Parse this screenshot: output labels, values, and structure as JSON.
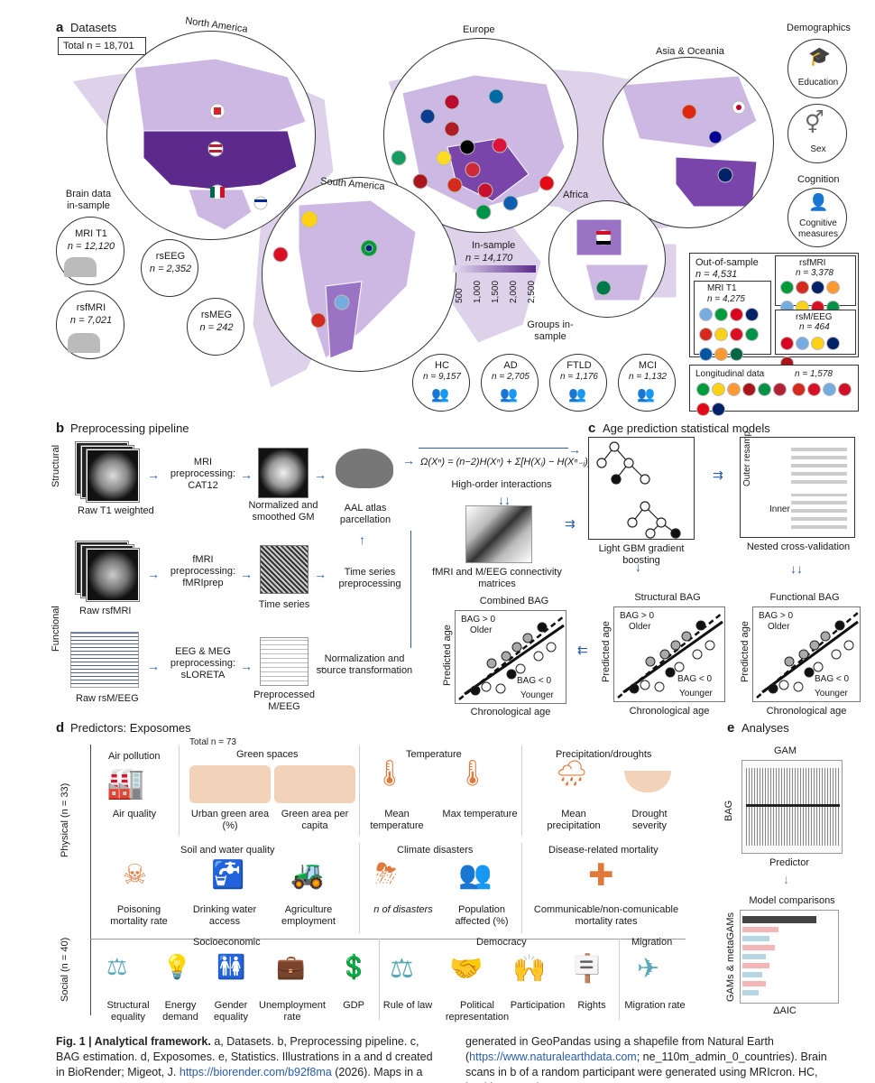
{
  "panel_a": {
    "letter": "a",
    "title": "Datasets",
    "total": "Total n = 18,701",
    "regions": [
      "North America",
      "Europe",
      "Asia & Oceania",
      "South America",
      "Africa"
    ],
    "demographics_title": "Demographics",
    "demographics": [
      "Education",
      "Sex"
    ],
    "cognition_title": "Cognition",
    "cognition": "Cognitive measures",
    "brain_data_title": "Brain data in-sample",
    "brain_data": [
      {
        "name": "MRI T1",
        "n": "n = 12,120"
      },
      {
        "name": "rsEEG",
        "n": "n = 2,352"
      },
      {
        "name": "rsfMRI",
        "n": "n = 7,021"
      },
      {
        "name": "rsMEG",
        "n": "n = 242"
      }
    ],
    "in_sample_label": "In-sample",
    "in_sample_n": "n = 14,170",
    "scale_ticks": [
      "500",
      "1,000",
      "1,500",
      "2,000",
      "2,500"
    ],
    "groups_title": "Groups in-sample",
    "groups": [
      {
        "name": "HC",
        "n": "n = 9,157"
      },
      {
        "name": "AD",
        "n": "n = 2,705"
      },
      {
        "name": "FTLD",
        "n": "n = 1,176"
      },
      {
        "name": "MCI",
        "n": "n = 1,132"
      }
    ],
    "oos_title": "Out-of-sample",
    "oos_n": "n = 4,531",
    "oos_mri": "MRI T1",
    "oos_mri_n": "n = 4,275",
    "oos_rsfmri": "rsfMRI",
    "oos_rsfmri_n": "n = 3,378",
    "oos_rsmeeg": "rsM/EEG",
    "oos_rsmeeg_n": "n = 464",
    "longitudinal": "Longitudinal data",
    "longitudinal_n": "n = 1,578"
  },
  "panel_b": {
    "letter": "b",
    "title": "Preprocessing pipeline",
    "structural_label": "Structural",
    "functional_label": "Functional",
    "raw_t1": "Raw T1 weighted",
    "mri_prep": "MRI preprocessing: CAT12",
    "normalized": "Normalized and smoothed GM",
    "aal": "AAL atlas parcellation",
    "raw_rsfmri": "Raw rsfMRI",
    "fmri_prep": "fMRI preprocessing: fMRIprep",
    "time_series": "Time series",
    "ts_prep": "Time series preprocessing",
    "raw_rsmeeg": "Raw rsM/EEG",
    "eeg_prep": "EEG & MEG preprocessing: sLORETA",
    "prep_meeg": "Preprocessed M/EEG",
    "norm_source": "Normalization and source transformation",
    "formula": "Ω(Xⁿ) = (n−2)H(Xⁿ) + Σ[H(Xⱼ) − H(Xⁿ₋ⱼ)]",
    "hoi": "High-order interactions",
    "conn": "fMRI and M/EEG connectivity matrices"
  },
  "panel_c": {
    "letter": "c",
    "title": "Age prediction statistical models",
    "lgbm": "Light GBM gradient boosting",
    "nested": "Nested cross-validation",
    "outer": "Outer resamp",
    "inner": "Inner resamp",
    "plots": [
      {
        "title": "Combined BAG"
      },
      {
        "title": "Structural BAG"
      },
      {
        "title": "Functional BAG"
      }
    ],
    "ylabel": "Predicted age",
    "xlabel": "Chronological age",
    "bag_pos": "BAG > 0",
    "older": "Older",
    "bag_neg": "BAG < 0",
    "younger": "Younger"
  },
  "panel_d": {
    "letter": "d",
    "title": "Predictors: Exposomes",
    "total": "Total n = 73",
    "physical_label": "Physical (n = 33)",
    "social_label": "Social (n = 40)",
    "groups": [
      {
        "title": "Air pollution",
        "items": [
          "Air quality"
        ]
      },
      {
        "title": "Green spaces",
        "items": [
          "Urban green area (%)",
          "Green area per capita"
        ]
      },
      {
        "title": "Temperature",
        "items": [
          "Mean temperature",
          "Max temperature"
        ]
      },
      {
        "title": "Precipitation/droughts",
        "items": [
          "Mean precipitation",
          "Drought severity"
        ]
      },
      {
        "title": "Soil and water quality",
        "items": [
          "Poisoning mortality rate",
          "Drinking water access",
          "Agriculture employment"
        ]
      },
      {
        "title": "Climate disasters",
        "items": [
          "n of disasters",
          "Population affected (%)"
        ]
      },
      {
        "title": "Disease-related mortality",
        "items": [
          "Communicable/non-comunicable mortality rates"
        ]
      },
      {
        "title": "Socioeconomic",
        "items": [
          "Structural equality",
          "Energy demand",
          "Gender equality",
          "Unemployment rate",
          "GDP"
        ]
      },
      {
        "title": "Democracy",
        "items": [
          "Rule of law",
          "Political representation",
          "Participation",
          "Rights"
        ]
      },
      {
        "title": "Migration",
        "items": [
          "Migration rate"
        ]
      }
    ]
  },
  "panel_e": {
    "letter": "e",
    "title": "Analyses",
    "gam": "GAM",
    "bag": "BAG",
    "predictor": "Predictor",
    "model_comp": "Model comparisons",
    "gams_label": "GAMs & metaGAMs",
    "daic": "ΔAIC"
  },
  "caption": {
    "fig": "Fig. 1 | Analytical framework.",
    "text1": " a, Datasets. b, Preprocessing pipeline. c, BAG estimation. d, Exposomes. e, Statistics. Illustrations in a and d created in BioRender; Migeot, J. ",
    "link1": "https://biorender.com/b92f8ma",
    "text2": " (2026). Maps in a were",
    "text3": "generated in GeoPandas using a shapefile from Natural Earth (",
    "link2": "https://www.naturalearthdata.com",
    "text4": "; ne_110m_admin_0_countries). Brain scans in b of a random participant were generated using MRIcron. HC, healthy controls."
  },
  "colors": {
    "map_light": "#cdb8e3",
    "map_dark": "#5b2a8c",
    "arrow_blue": "#2a5caa",
    "orange": "#e07a3c",
    "teal": "#5aa9b8"
  }
}
